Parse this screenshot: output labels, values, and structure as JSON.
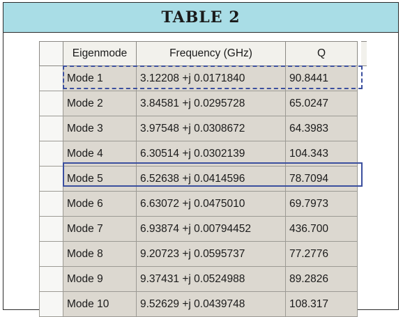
{
  "title": "TABLE 2",
  "columns": [
    "Eigenmode",
    "Frequency (GHz)",
    "Q"
  ],
  "rows": [
    {
      "mode": "Mode 1",
      "frequency": "3.12208 +j 0.0171840",
      "q": "90.8441"
    },
    {
      "mode": "Mode 2",
      "frequency": "3.84581 +j 0.0295728",
      "q": "65.0247"
    },
    {
      "mode": "Mode 3",
      "frequency": "3.97548 +j 0.0308672",
      "q": "64.3983"
    },
    {
      "mode": "Mode 4",
      "frequency": "6.30514 +j 0.0302139",
      "q": "104.343"
    },
    {
      "mode": "Mode 5",
      "frequency": "6.52638 +j 0.0414596",
      "q": "78.7094"
    },
    {
      "mode": "Mode 6",
      "frequency": "6.63072 +j 0.0475010",
      "q": "69.7973"
    },
    {
      "mode": "Mode 7",
      "frequency": "6.93874 +j 0.00794452",
      "q": "436.700"
    },
    {
      "mode": "Mode 8",
      "frequency": "9.20723 +j 0.0595737",
      "q": "77.2776"
    },
    {
      "mode": "Mode 9",
      "frequency": "9.37431 +j 0.0524988",
      "q": "89.2826"
    },
    {
      "mode": "Mode 10",
      "frequency": "9.52629 +j 0.0439748",
      "q": "108.317"
    }
  ],
  "colors": {
    "title_background": "#a9dde6",
    "cell_background": "#dcd8d0",
    "highlight_border": "#3b4f9e"
  }
}
